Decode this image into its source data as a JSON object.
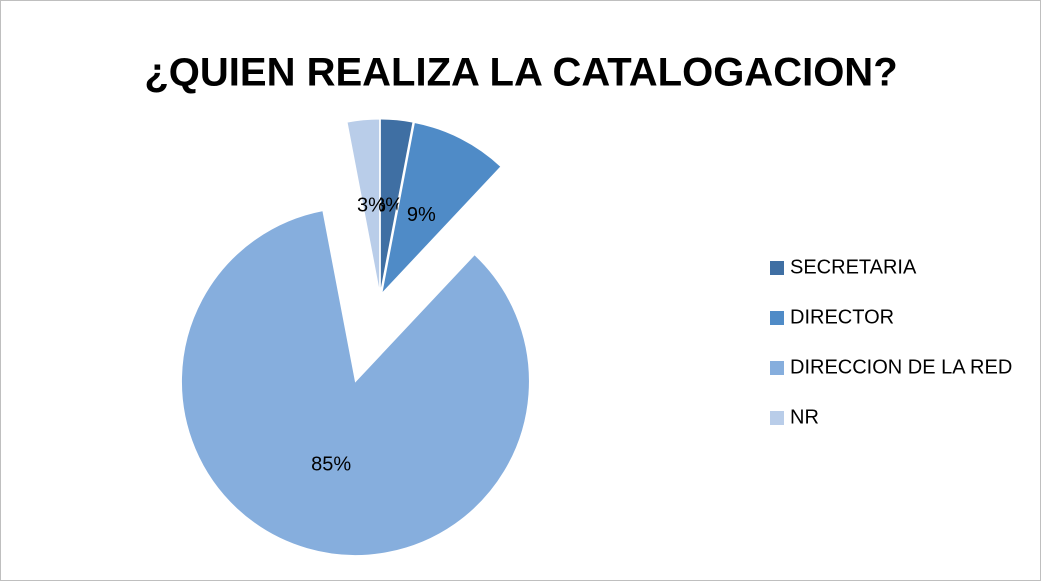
{
  "chart_data": {
    "type": "pie",
    "title": "¿QUIEN REALIZA LA CATALOGACION?",
    "categories": [
      "SECRETARIA",
      "DIRECTOR",
      "DIRECCION DE LA RED",
      "NR"
    ],
    "values": [
      3,
      9,
      85,
      3
    ],
    "value_labels": [
      "3%",
      "9%",
      "85%",
      "3%"
    ],
    "colors": [
      "#3f6fa3",
      "#4f8bc7",
      "#86aedd",
      "#b9cde9"
    ],
    "legend": "right"
  }
}
